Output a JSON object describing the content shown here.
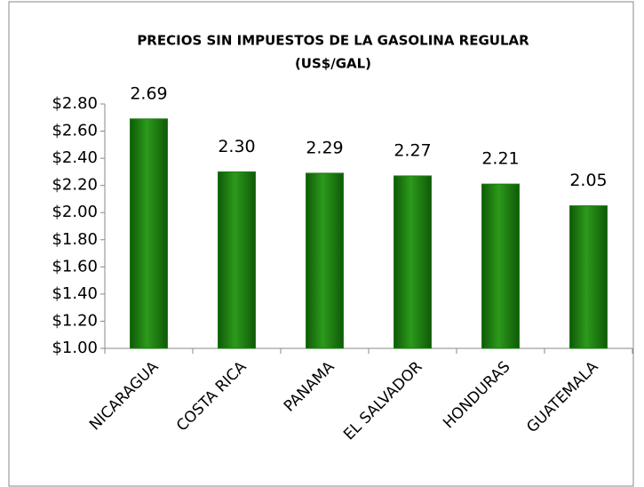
{
  "chart_data": {
    "type": "bar",
    "title": "PRECIOS SIN IMPUESTOS DE LA GASOLINA REGULAR",
    "subtitle": "(US$/GAL)",
    "categories": [
      "NICARAGUA",
      "COSTA RICA",
      "PANAMA",
      "EL SALVADOR",
      "HONDURAS",
      "GUATEMALA"
    ],
    "values": [
      2.69,
      2.3,
      2.29,
      2.27,
      2.21,
      2.05
    ],
    "value_labels": [
      "2.69",
      "2.30",
      "2.29",
      "2.27",
      "2.21",
      "2.05"
    ],
    "color": "#1f7a12",
    "ylim": [
      1.0,
      2.8
    ],
    "yticks": [
      {
        "value": 1.0,
        "label": "$1.00"
      },
      {
        "value": 1.2,
        "label": "$1.20"
      },
      {
        "value": 1.4,
        "label": "$1.40"
      },
      {
        "value": 1.6,
        "label": "$1.60"
      },
      {
        "value": 1.8,
        "label": "$1.80"
      },
      {
        "value": 2.0,
        "label": "$2.00"
      },
      {
        "value": 2.2,
        "label": "$2.20"
      },
      {
        "value": 2.4,
        "label": "$2.40"
      },
      {
        "value": 2.6,
        "label": "$2.60"
      },
      {
        "value": 2.8,
        "label": "$2.80"
      }
    ],
    "grid": false
  }
}
